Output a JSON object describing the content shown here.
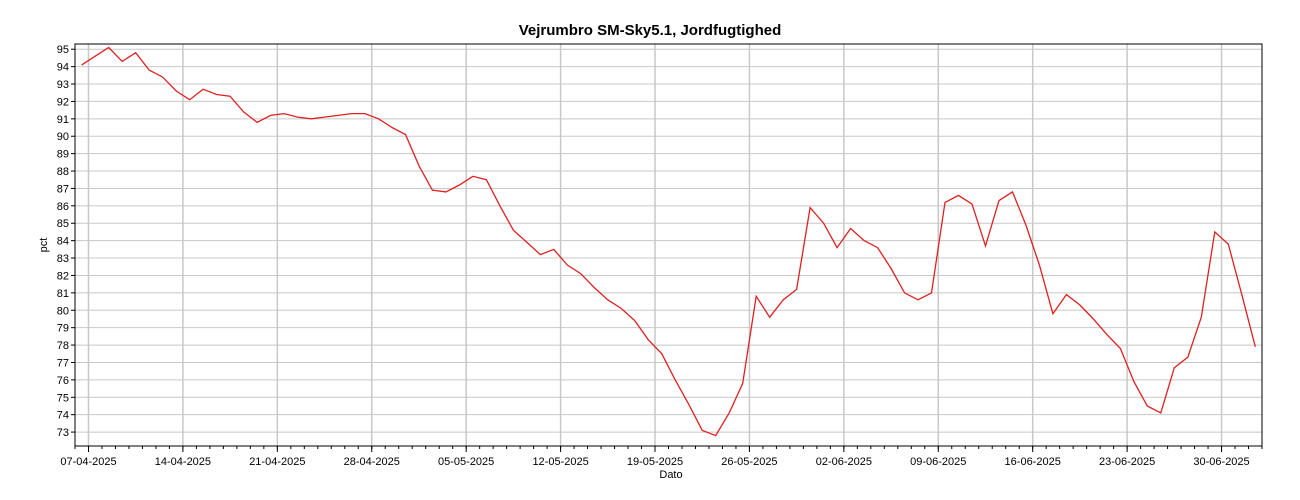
{
  "chart_data": {
    "type": "line",
    "title": "Vejrumbro SM-Sky5.1, Jordfugtighed",
    "xlabel": "Dato",
    "ylabel": "pct",
    "ylim": [
      72.2,
      95.3
    ],
    "xlim": [
      "2025-04-06",
      "2025-07-03"
    ],
    "grid": true,
    "legend": "none",
    "line_color": "#e02020",
    "grid_color": "#c8c8c8",
    "x_ticks": [
      "07-04-2025",
      "14-04-2025",
      "21-04-2025",
      "28-04-2025",
      "05-05-2025",
      "12-05-2025",
      "19-05-2025",
      "26-05-2025",
      "02-06-2025",
      "09-06-2025",
      "16-06-2025",
      "23-06-2025",
      "30-06-2025"
    ],
    "y_ticks": [
      73,
      74,
      75,
      76,
      77,
      78,
      79,
      80,
      81,
      82,
      83,
      84,
      85,
      86,
      87,
      88,
      89,
      90,
      91,
      92,
      93,
      94,
      95
    ],
    "series": [
      {
        "x": [
          "2025-04-06",
          "2025-04-07",
          "2025-04-08",
          "2025-04-09",
          "2025-04-10",
          "2025-04-11",
          "2025-04-12",
          "2025-04-13",
          "2025-04-14",
          "2025-04-15",
          "2025-04-16",
          "2025-04-17",
          "2025-04-18",
          "2025-04-19",
          "2025-04-20",
          "2025-04-21",
          "2025-04-22",
          "2025-04-23",
          "2025-04-24",
          "2025-04-25",
          "2025-04-26",
          "2025-04-27",
          "2025-04-28",
          "2025-04-29",
          "2025-04-30",
          "2025-05-01",
          "2025-05-02",
          "2025-05-03",
          "2025-05-04",
          "2025-05-05",
          "2025-05-06",
          "2025-05-07",
          "2025-05-08",
          "2025-05-09",
          "2025-05-10",
          "2025-05-11",
          "2025-05-12",
          "2025-05-13",
          "2025-05-14",
          "2025-05-15",
          "2025-05-16",
          "2025-05-17",
          "2025-05-18",
          "2025-05-19",
          "2025-05-20",
          "2025-05-21",
          "2025-05-22",
          "2025-05-23",
          "2025-05-24",
          "2025-05-25",
          "2025-05-26",
          "2025-05-27",
          "2025-05-28",
          "2025-05-29",
          "2025-05-30",
          "2025-05-31",
          "2025-06-01",
          "2025-06-02",
          "2025-06-03",
          "2025-06-04",
          "2025-06-05",
          "2025-06-06",
          "2025-06-07",
          "2025-06-08",
          "2025-06-09",
          "2025-06-10",
          "2025-06-11",
          "2025-06-12",
          "2025-06-13",
          "2025-06-14",
          "2025-06-15",
          "2025-06-16",
          "2025-06-17",
          "2025-06-18",
          "2025-06-19",
          "2025-06-20",
          "2025-06-21",
          "2025-06-22",
          "2025-06-23",
          "2025-06-24",
          "2025-06-25",
          "2025-06-26",
          "2025-06-27",
          "2025-06-28",
          "2025-06-29",
          "2025-06-30",
          "2025-07-01",
          "2025-07-02"
        ],
        "y": [
          94.1,
          94.6,
          95.1,
          94.3,
          94.8,
          93.8,
          93.4,
          92.6,
          92.1,
          92.7,
          92.4,
          92.3,
          91.4,
          90.8,
          91.2,
          91.3,
          91.1,
          91.0,
          91.1,
          91.2,
          91.3,
          91.3,
          91.0,
          90.5,
          90.1,
          88.3,
          86.9,
          86.8,
          87.2,
          87.7,
          87.5,
          86.0,
          84.6,
          83.9,
          83.2,
          83.5,
          82.6,
          82.1,
          81.3,
          80.6,
          80.1,
          79.4,
          78.3,
          77.5,
          76.0,
          74.6,
          73.1,
          72.8,
          74.1,
          75.8,
          80.8,
          79.6,
          80.6,
          81.2,
          85.9,
          85.0,
          83.6,
          84.7,
          84.0,
          83.6,
          82.4,
          81.0,
          80.6,
          81.0,
          86.2,
          86.6,
          86.1,
          83.7,
          86.3,
          86.8,
          84.9,
          82.6,
          79.8,
          80.9,
          80.3,
          79.5,
          78.6,
          77.8,
          75.9,
          74.5,
          74.1,
          76.7,
          77.3,
          79.6,
          84.5,
          83.8,
          80.9,
          77.9
        ]
      }
    ]
  }
}
